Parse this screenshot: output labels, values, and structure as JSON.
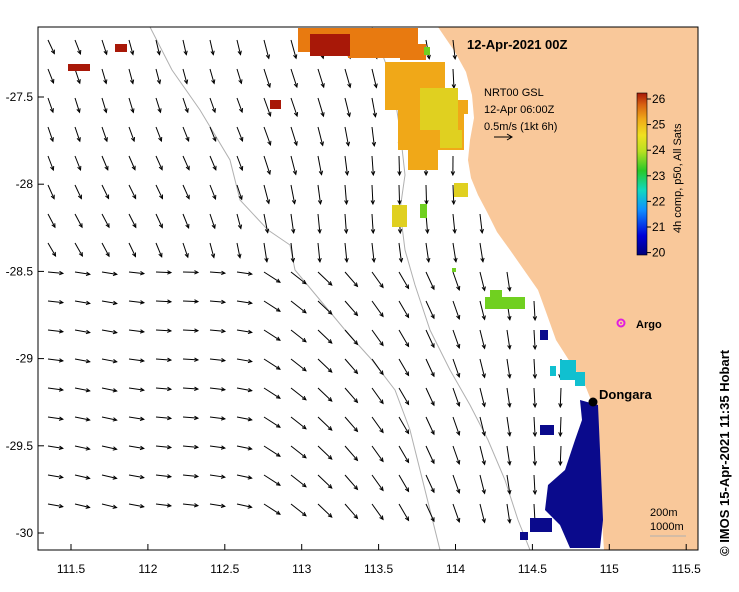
{
  "title": "12-Apr-2021 00Z",
  "product": "NRT00 GSL",
  "product_time": "12-Apr 06:00Z",
  "vector_scale": "0.5m/s (1kt 6h)",
  "colorbar": {
    "label": "4h comp, p50, All Sats",
    "ticks": [
      "26",
      "25",
      "24",
      "23",
      "22",
      "21",
      "20"
    ]
  },
  "axes": {
    "x_ticks": [
      "111.5",
      "112",
      "112.5",
      "113",
      "113.5",
      "114",
      "114.5",
      "115",
      "115.5"
    ],
    "y_ticks": [
      "-27.5",
      "-28",
      "-28.5",
      "-29",
      "-29.5",
      "-30"
    ]
  },
  "places": {
    "town": "Dongara",
    "float": "Argo"
  },
  "contours": [
    "200m",
    "1000m"
  ],
  "credit": "© IMOS 15-Apr-2021 11:35 Hobart",
  "colors": {
    "land": "#f9c89a",
    "argo": "#e01ee0",
    "bathymetry": "#b0b0b0"
  }
}
